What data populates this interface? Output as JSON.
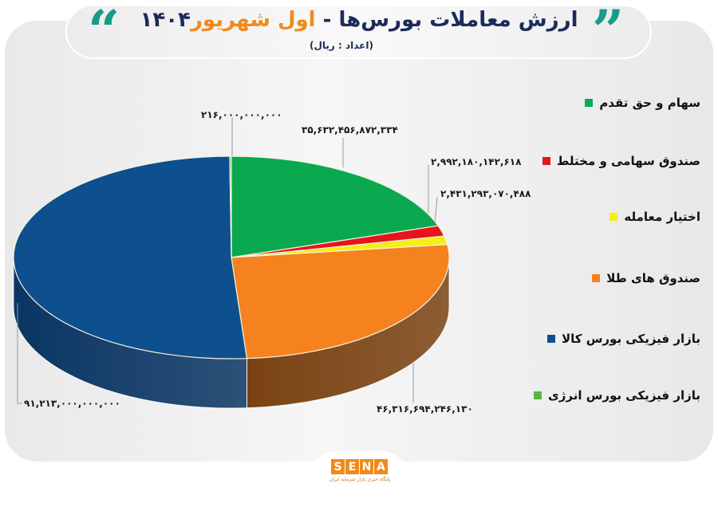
{
  "header": {
    "title_main": "ارزش معاملات بورس‌ها",
    "title_sep": " - ",
    "title_accent": "اول شهریور",
    "title_year": "۱۴۰۴",
    "subtitle": "(اعداد : ریال)",
    "quote_open": "“",
    "quote_close": "”",
    "quote_color": "#1a9a8a"
  },
  "legend": {
    "items": [
      {
        "label": "سهام و حق تقدم",
        "color": "#0aa94f"
      },
      {
        "label": "صندوق سهامی و مختلط",
        "color": "#e8141b"
      },
      {
        "label": "اختیار معامله",
        "color": "#f7ee17"
      },
      {
        "label": "صندوق های طلا",
        "color": "#f5821f"
      },
      {
        "label": "بازار فیزیکی بورس کالا",
        "color": "#0e4f8e"
      },
      {
        "label": "بازار فیزیکی بورس انرژی",
        "color": "#5cb546"
      }
    ]
  },
  "value_labels": [
    {
      "text": "۲۱۶,۰۰۰,۰۰۰,۰۰۰"
    },
    {
      "text": "۳۵,۶۳۲,۴۵۶,۸۷۲,۳۳۴"
    },
    {
      "text": "۲,۹۹۲,۱۸۰,۱۴۲,۶۱۸"
    },
    {
      "text": "۲,۴۳۱,۲۹۳,۰۷۰,۴۸۸"
    },
    {
      "text": "۴۶,۳۱۶,۶۹۴,۲۴۶,۱۳۰"
    },
    {
      "text": "۹۱,۲۱۳,۰۰۰,۰۰۰,۰۰۰"
    }
  ],
  "footer": {
    "logo_letters": [
      "S",
      "E",
      "N",
      "A"
    ],
    "logo_tagline": "پایگاه خبری بازار سرمایه ایران",
    "brand_color": "#f08a1c"
  },
  "chart_data": {
    "type": "pie",
    "style": "3d",
    "title": "ارزش معاملات بورس‌ها - اول شهریور ۱۴۰۴",
    "subtitle": "(اعداد : ریال)",
    "unit": "ریال",
    "legend_position": "right",
    "categories": [
      "سهام و حق تقدم",
      "صندوق سهامی و مختلط",
      "اختیار معامله",
      "صندوق های طلا",
      "بازار فیزیکی بورس کالا",
      "بازار فیزیکی بورس انرژی"
    ],
    "values": [
      35632456872334,
      2992180142618,
      2431293070488,
      46316694246130,
      91213000000000,
      216000000000
    ],
    "colors": [
      "#0aa94f",
      "#e8141b",
      "#f7ee17",
      "#f5821f",
      "#0e4f8e",
      "#5cb546"
    ],
    "side_colors": [
      "#066b32",
      "#8e0c10",
      "#a39c0d",
      "#7a4212",
      "#0a3563",
      "#3a7a2c"
    ]
  }
}
